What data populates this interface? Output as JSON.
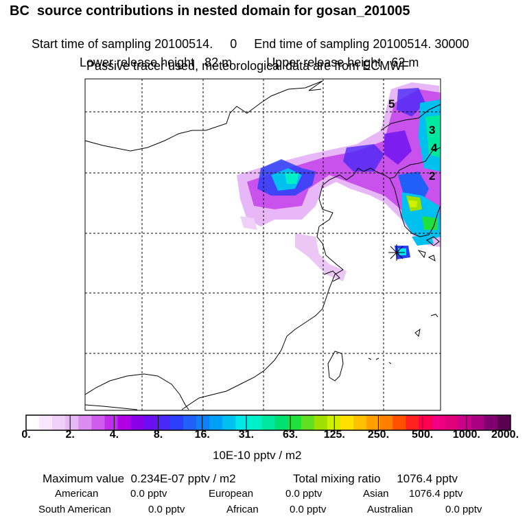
{
  "header": {
    "title": "BC  source contributions in nested domain for gosan_201005",
    "start_label": "Start time of sampling",
    "start_value": "20100514.     0",
    "end_label": "End time of sampling",
    "end_value": "20100514. 30000",
    "lower_label": "Lower release height",
    "lower_value": "82 m",
    "upper_label": "Upper release height",
    "upper_value": "62 m",
    "note": "Passive tracer used, meteorological data are from ECMWF"
  },
  "map": {
    "region_labels": [
      "5",
      "3",
      "4",
      "2"
    ],
    "receptor_marker": "star-marker"
  },
  "colorbar": {
    "units": "10E-10 pptv / m2",
    "ticks": [
      "0.",
      "2.",
      "4.",
      "8.",
      "16.",
      "31.",
      "63.",
      "125.",
      "250.",
      "500.",
      "1000.",
      "2000."
    ],
    "colors": [
      "#ffffff",
      "#f7e8fb",
      "#efd1f8",
      "#e7b9f4",
      "#db8cf0",
      "#cf5ced",
      "#c02ee9",
      "#b000e6",
      "#8a00e6",
      "#6a10f0",
      "#4a28f5",
      "#2a40f8",
      "#2060f8",
      "#1080f8",
      "#00a0f8",
      "#00c0f0",
      "#00e8e8",
      "#00f0c8",
      "#00e8a0",
      "#00e070",
      "#20e040",
      "#60e020",
      "#a0e000",
      "#d0f000",
      "#ffe000",
      "#ffc000",
      "#ffa000",
      "#ff8000",
      "#ff5000",
      "#ff2020",
      "#ff0050",
      "#f00080",
      "#e0007a",
      "#c8008a",
      "#a80080",
      "#800070",
      "#5a0050"
    ]
  },
  "footer": {
    "max_label": "Maximum value",
    "max_value": "0.234E-07 pptv / m2",
    "total_label": "Total mixing ratio",
    "total_value": "1076.4 pptv",
    "american_label": "American",
    "american_value": "0.0 pptv",
    "european_label": "European",
    "european_value": "0.0 pptv",
    "asian_label": "Asian",
    "asian_value": "1076.4 pptv",
    "south_american_label": "South American",
    "south_american_value": "0.0 pptv",
    "african_label": "African",
    "african_value": "0.0 pptv",
    "australian_label": "Australian",
    "australian_value": "0.0 pptv"
  }
}
